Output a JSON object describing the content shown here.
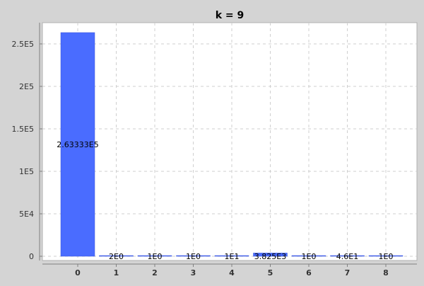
{
  "chart_data": {
    "type": "bar",
    "title": "k = 9",
    "xlabel": "",
    "ylabel": "",
    "categories": [
      "0",
      "1",
      "2",
      "3",
      "4",
      "5",
      "6",
      "7",
      "8"
    ],
    "values": [
      263333,
      2,
      1,
      1,
      10,
      3825,
      1,
      46,
      1
    ],
    "value_labels": [
      "2.63333E5",
      "2E0",
      "1E0",
      "1E0",
      "1E1",
      "3.825E3",
      "1E0",
      "4.6E1",
      "1E0"
    ],
    "ylim": [
      -5000,
      275000
    ],
    "yticks": [
      {
        "value": 0,
        "label": "0"
      },
      {
        "value": 50000,
        "label": "5E4"
      },
      {
        "value": 100000,
        "label": "1E5"
      },
      {
        "value": 150000,
        "label": "1.5E5"
      },
      {
        "value": 200000,
        "label": "2E5"
      },
      {
        "value": 250000,
        "label": "2.5E5"
      }
    ],
    "grid": true,
    "bar_color": "#4a6cff",
    "background_color": "#ffffff",
    "outer_background": "#d4d4d4"
  }
}
